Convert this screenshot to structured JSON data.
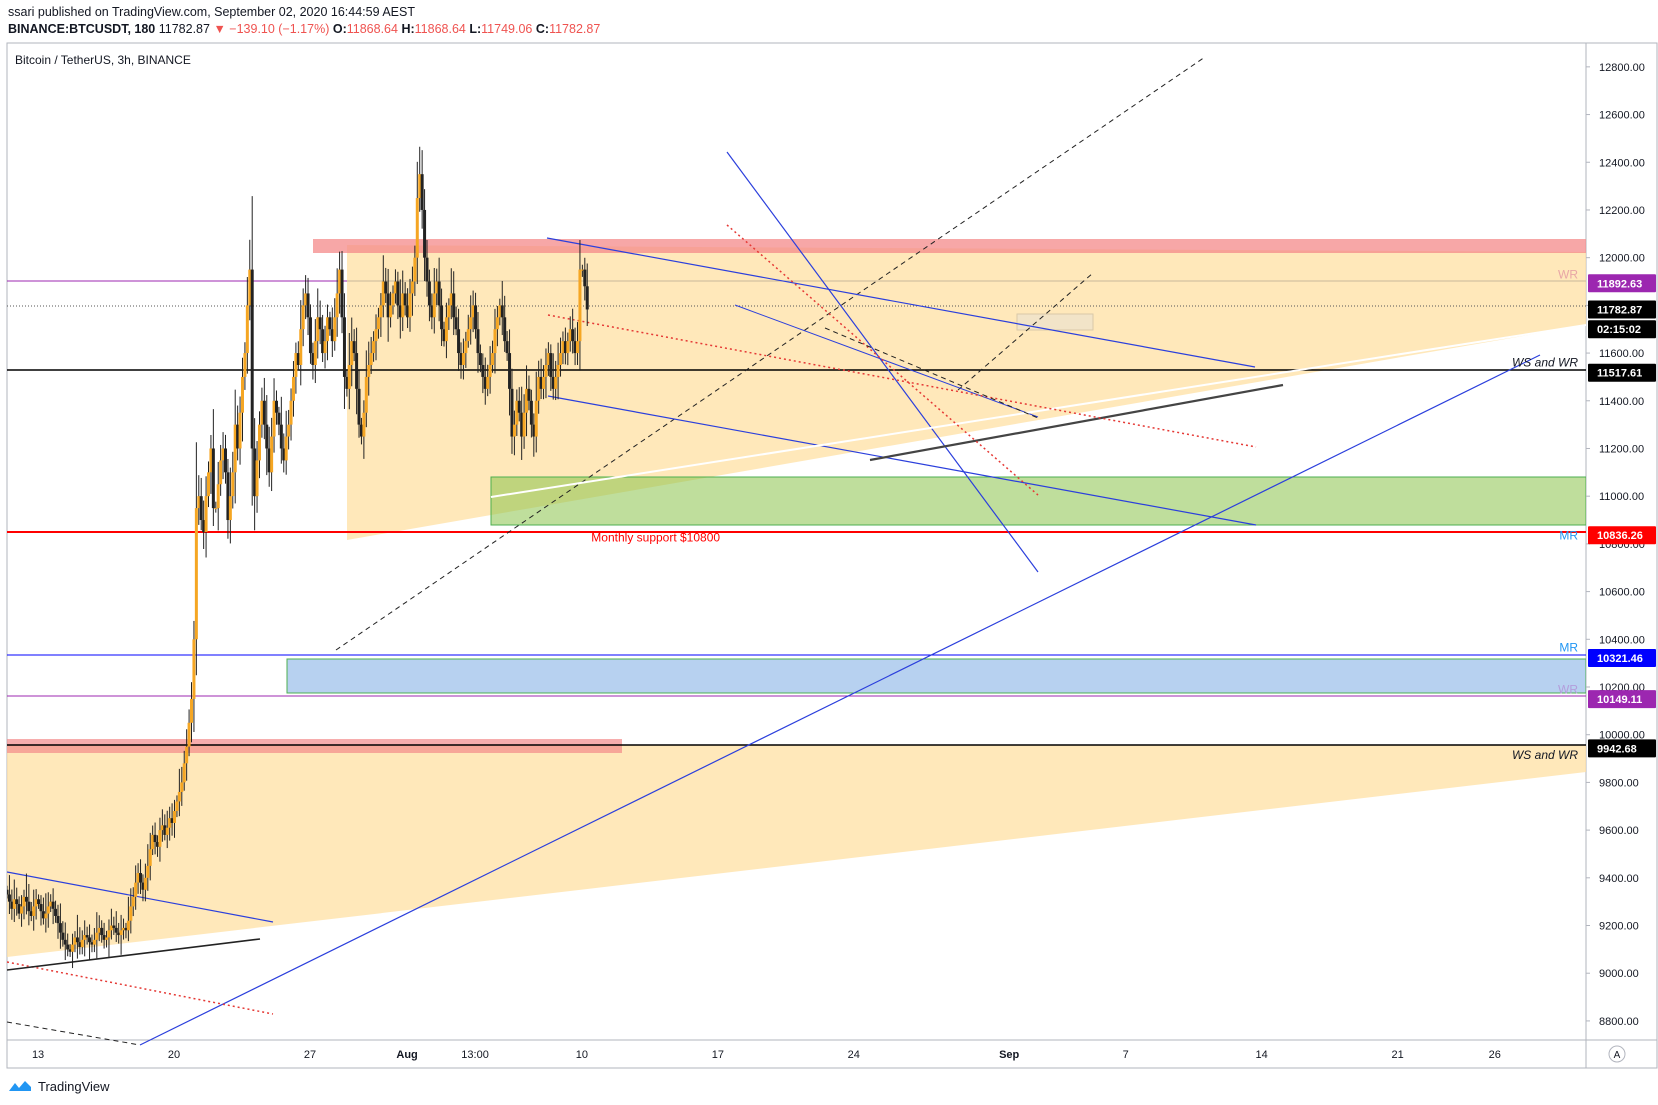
{
  "header": {
    "publisher": "ssari published on TradingView.com, September 02, 2020 16:44:59 AEST",
    "symbol": "BINANCE:BTCUSDT, 180",
    "last": "11782.87",
    "change": "▼ −139.10 (−1.17%)",
    "o_label": "O:",
    "o_value": "11868.64",
    "h_label": "H:",
    "h_value": "11868.64",
    "l_label": "L:",
    "l_value": "11749.06",
    "c_label": "C:",
    "c_value": "11782.87"
  },
  "footer": {
    "brand": "TradingView"
  },
  "chart_data": {
    "type": "candlestick",
    "title": "Bitcoin / TetherUS, 3h, BINANCE",
    "ylim": [
      8720,
      12900
    ],
    "y_ticks": [
      "12800.00",
      "12600.00",
      "12400.00",
      "12200.00",
      "12000.00",
      "11800.00",
      "11600.00",
      "11400.00",
      "11200.00",
      "11000.00",
      "10800.00",
      "10600.00",
      "10400.00",
      "10200.00",
      "10000.00",
      "9800.00",
      "9600.00",
      "9400.00",
      "9200.00",
      "9000.00",
      "8800.00"
    ],
    "x_ticks": [
      {
        "label": "13",
        "day": 13
      },
      {
        "label": "20",
        "day": 20
      },
      {
        "label": "27",
        "day": 27
      },
      {
        "label": "Aug",
        "day": 32,
        "bold": true
      },
      {
        "label": "13:00",
        "day": 35.5
      },
      {
        "label": "10",
        "day": 41
      },
      {
        "label": "17",
        "day": 48
      },
      {
        "label": "24",
        "day": 55
      },
      {
        "label": "Sep",
        "day": 63,
        "bold": true
      },
      {
        "label": "7",
        "day": 69
      },
      {
        "label": "14",
        "day": 76
      },
      {
        "label": "21",
        "day": 83
      },
      {
        "label": "26",
        "day": 88
      }
    ],
    "xlim": [
      11.4,
      92.7
    ],
    "scale_button": "A",
    "price_labels": [
      {
        "text": "11892.63",
        "value": 11892.63,
        "color": "#9c27b0"
      },
      {
        "text": "11782.87",
        "value": 11782.87,
        "color": "#000000"
      },
      {
        "text": "02:15:02",
        "value": 11700,
        "color": "#000000"
      },
      {
        "text": "11517.61",
        "value": 11517.61,
        "color": "#000000"
      },
      {
        "text": "10836.26",
        "value": 10836.26,
        "color": "#ff0000"
      },
      {
        "text": "10321.46",
        "value": 10321.46,
        "color": "#0000ff"
      },
      {
        "text": "10149.11",
        "value": 10149.11,
        "color": "#9c27b0"
      },
      {
        "text": "9942.68",
        "value": 9942.68,
        "color": "#000000"
      }
    ],
    "level_tags": [
      {
        "text": "WR",
        "value": 11930,
        "color": "#e8a6a6"
      },
      {
        "text": "WS and WR",
        "value": 11560,
        "color": "#131722",
        "italic": true
      },
      {
        "text": "MR",
        "value": 10835,
        "color": "#2196f3"
      },
      {
        "text": "MR",
        "value": 10365,
        "color": "#2196f3"
      },
      {
        "text": "WR",
        "value": 10190,
        "color": "#b39ddb"
      },
      {
        "text": "WS and WR",
        "value": 9915,
        "color": "#131722",
        "italic": true
      }
    ],
    "annotations": [
      {
        "text": "Monthly support $10800",
        "day": 44.8,
        "value": 10810,
        "color": "#ff0000"
      }
    ],
    "closes": [
      9330,
      9300,
      9270,
      9310,
      9290,
      9250,
      9280,
      9320,
      9300,
      9260,
      9240,
      9280,
      9310,
      9290,
      9260,
      9230,
      9250,
      9280,
      9300,
      9270,
      9240,
      9210,
      9170,
      9140,
      9120,
      9100,
      9090,
      9120,
      9150,
      9130,
      9110,
      9140,
      9160,
      9150,
      9130,
      9120,
      9140,
      9170,
      9190,
      9160,
      9140,
      9150,
      9180,
      9200,
      9190,
      9170,
      9160,
      9180,
      9190,
      9180,
      9220,
      9280,
      9320,
      9380,
      9420,
      9380,
      9350,
      9400,
      9450,
      9520,
      9580,
      9550,
      9530,
      9600,
      9620,
      9580,
      9610,
      9650,
      9630,
      9680,
      9720,
      9760,
      9800,
      9880,
      9950,
      10050,
      10150,
      10400,
      10950,
      11000,
      10900,
      10850,
      11000,
      11100,
      11200,
      10950,
      10950,
      11050,
      11150,
      11200,
      11100,
      10900,
      11000,
      11100,
      11300,
      11200,
      11350,
      11500,
      11600,
      11800,
      11950,
      11200,
      11000,
      11150,
      11300,
      11400,
      11300,
      11200,
      11100,
      11250,
      11400,
      11350,
      11300,
      11200,
      11150,
      11250,
      11300,
      11400,
      11500,
      11600,
      11550,
      11700,
      11800,
      11850,
      11750,
      11600,
      11550,
      11650,
      11750,
      11700,
      11600,
      11650,
      11750,
      11700,
      11650,
      11750,
      11850,
      11950,
      11750,
      11500,
      11450,
      11550,
      11650,
      11600,
      11450,
      11300,
      11250,
      11350,
      11500,
      11550,
      11600,
      11650,
      11700,
      11750,
      11800,
      11900,
      11850,
      11750,
      11800,
      11850,
      11900,
      11800,
      11750,
      11850,
      11800,
      11750,
      11850,
      11900,
      12000,
      12250,
      12350,
      12200,
      12000,
      11900,
      11800,
      11750,
      11850,
      11900,
      11800,
      11700,
      11650,
      11750,
      11800,
      11850,
      11750,
      11700,
      11600,
      11550,
      11600,
      11650,
      11700,
      11750,
      11800,
      11700,
      11600,
      11550,
      11500,
      11450,
      11500,
      11550,
      11600,
      11700,
      11750,
      11800,
      11750,
      11650,
      11600,
      11450,
      11250,
      11300,
      11400,
      11350,
      11250,
      11350,
      11450,
      11400,
      11300,
      11250,
      11400,
      11500,
      11450,
      11500,
      11550,
      11600,
      11500,
      11450,
      11500,
      11550,
      11600,
      11650,
      11600,
      11650,
      11700,
      11650,
      11600,
      11650,
      11950,
      11950,
      11880,
      11782.87
    ]
  }
}
